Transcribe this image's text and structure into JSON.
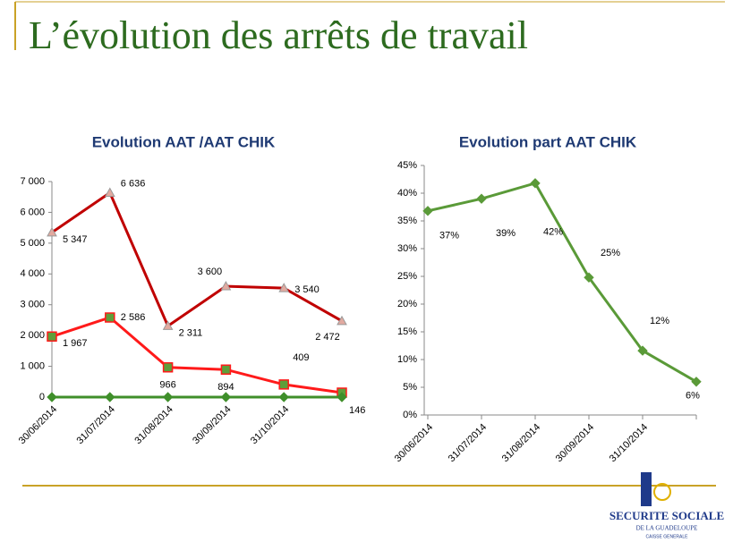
{
  "title": "L’évolution des arrêts de travail",
  "chart_data": [
    {
      "type": "line",
      "title": "Evolution AAT /AAT CHIK",
      "categories": [
        "30/06/2014",
        "31/07/2014",
        "31/08/2014",
        "30/09/2014",
        "31/10/2014",
        null
      ],
      "ylim": [
        0,
        7000
      ],
      "yticks": [
        0,
        {
          "value": 1000,
          "label": "1 000"
        },
        {
          "value": 2000,
          "label": "2 000"
        },
        {
          "value": 3000,
          "label": "3 000"
        },
        {
          "value": 4000,
          "label": "4 000"
        },
        {
          "value": 5000,
          "label": "5 000"
        },
        {
          "value": 6000,
          "label": "6 000"
        },
        {
          "value": 7000,
          "label": "7 000"
        }
      ],
      "series": [
        {
          "color": "#c00000",
          "marker": "triangle",
          "marker_fill": "#e2aaa0",
          "values": [
            5347,
            6636,
            2311,
            3600,
            3540,
            2472
          ],
          "value_labels": [
            "5 347",
            "6 636",
            "2 311",
            "3 600",
            "3 540",
            "2 472"
          ]
        },
        {
          "color": "#ff1a1a",
          "marker": "square",
          "marker_fill": "#5e9e3a",
          "values": [
            1967,
            2586,
            966,
            894,
            409,
            146
          ],
          "value_labels": [
            "1 967",
            "2 586",
            "966",
            "894",
            "409",
            "146"
          ]
        },
        {
          "color": "#3f8f2a",
          "marker": "diamond",
          "marker_fill": "#3f8f2a",
          "values": [
            0,
            0,
            0,
            0,
            0,
            0
          ]
        }
      ]
    },
    {
      "type": "line",
      "title": "Evolution part AAT CHIK",
      "categories": [
        "30/06/2014",
        "31/07/2014",
        "31/08/2014",
        "30/09/2014",
        "31/10/2014",
        null
      ],
      "ylim": [
        0,
        45
      ],
      "yticks": [
        {
          "value": 0,
          "label": "0%"
        },
        {
          "value": 5,
          "label": "5%"
        },
        {
          "value": 10,
          "label": "10%"
        },
        {
          "value": 15,
          "label": "15%"
        },
        {
          "value": 20,
          "label": "20%"
        },
        {
          "value": 25,
          "label": "25%"
        },
        {
          "value": 30,
          "label": "30%"
        },
        {
          "value": 35,
          "label": "35%"
        },
        {
          "value": 40,
          "label": "40%"
        },
        {
          "value": 45,
          "label": "45%"
        }
      ],
      "series": [
        {
          "color": "#5a9a38",
          "marker": "diamond",
          "marker_fill": "#5a9a38",
          "values": [
            36.8,
            39,
            41.8,
            24.8,
            11.6,
            6
          ],
          "value_labels": [
            "37%",
            "39%",
            "42%",
            "25%",
            "12%",
            "6%"
          ]
        }
      ]
    }
  ],
  "logo": {
    "line1": "SECURITE SOCIALE",
    "line2": "DE LA GUADELOUPE",
    "line3": "CAISSE GENERALE"
  }
}
